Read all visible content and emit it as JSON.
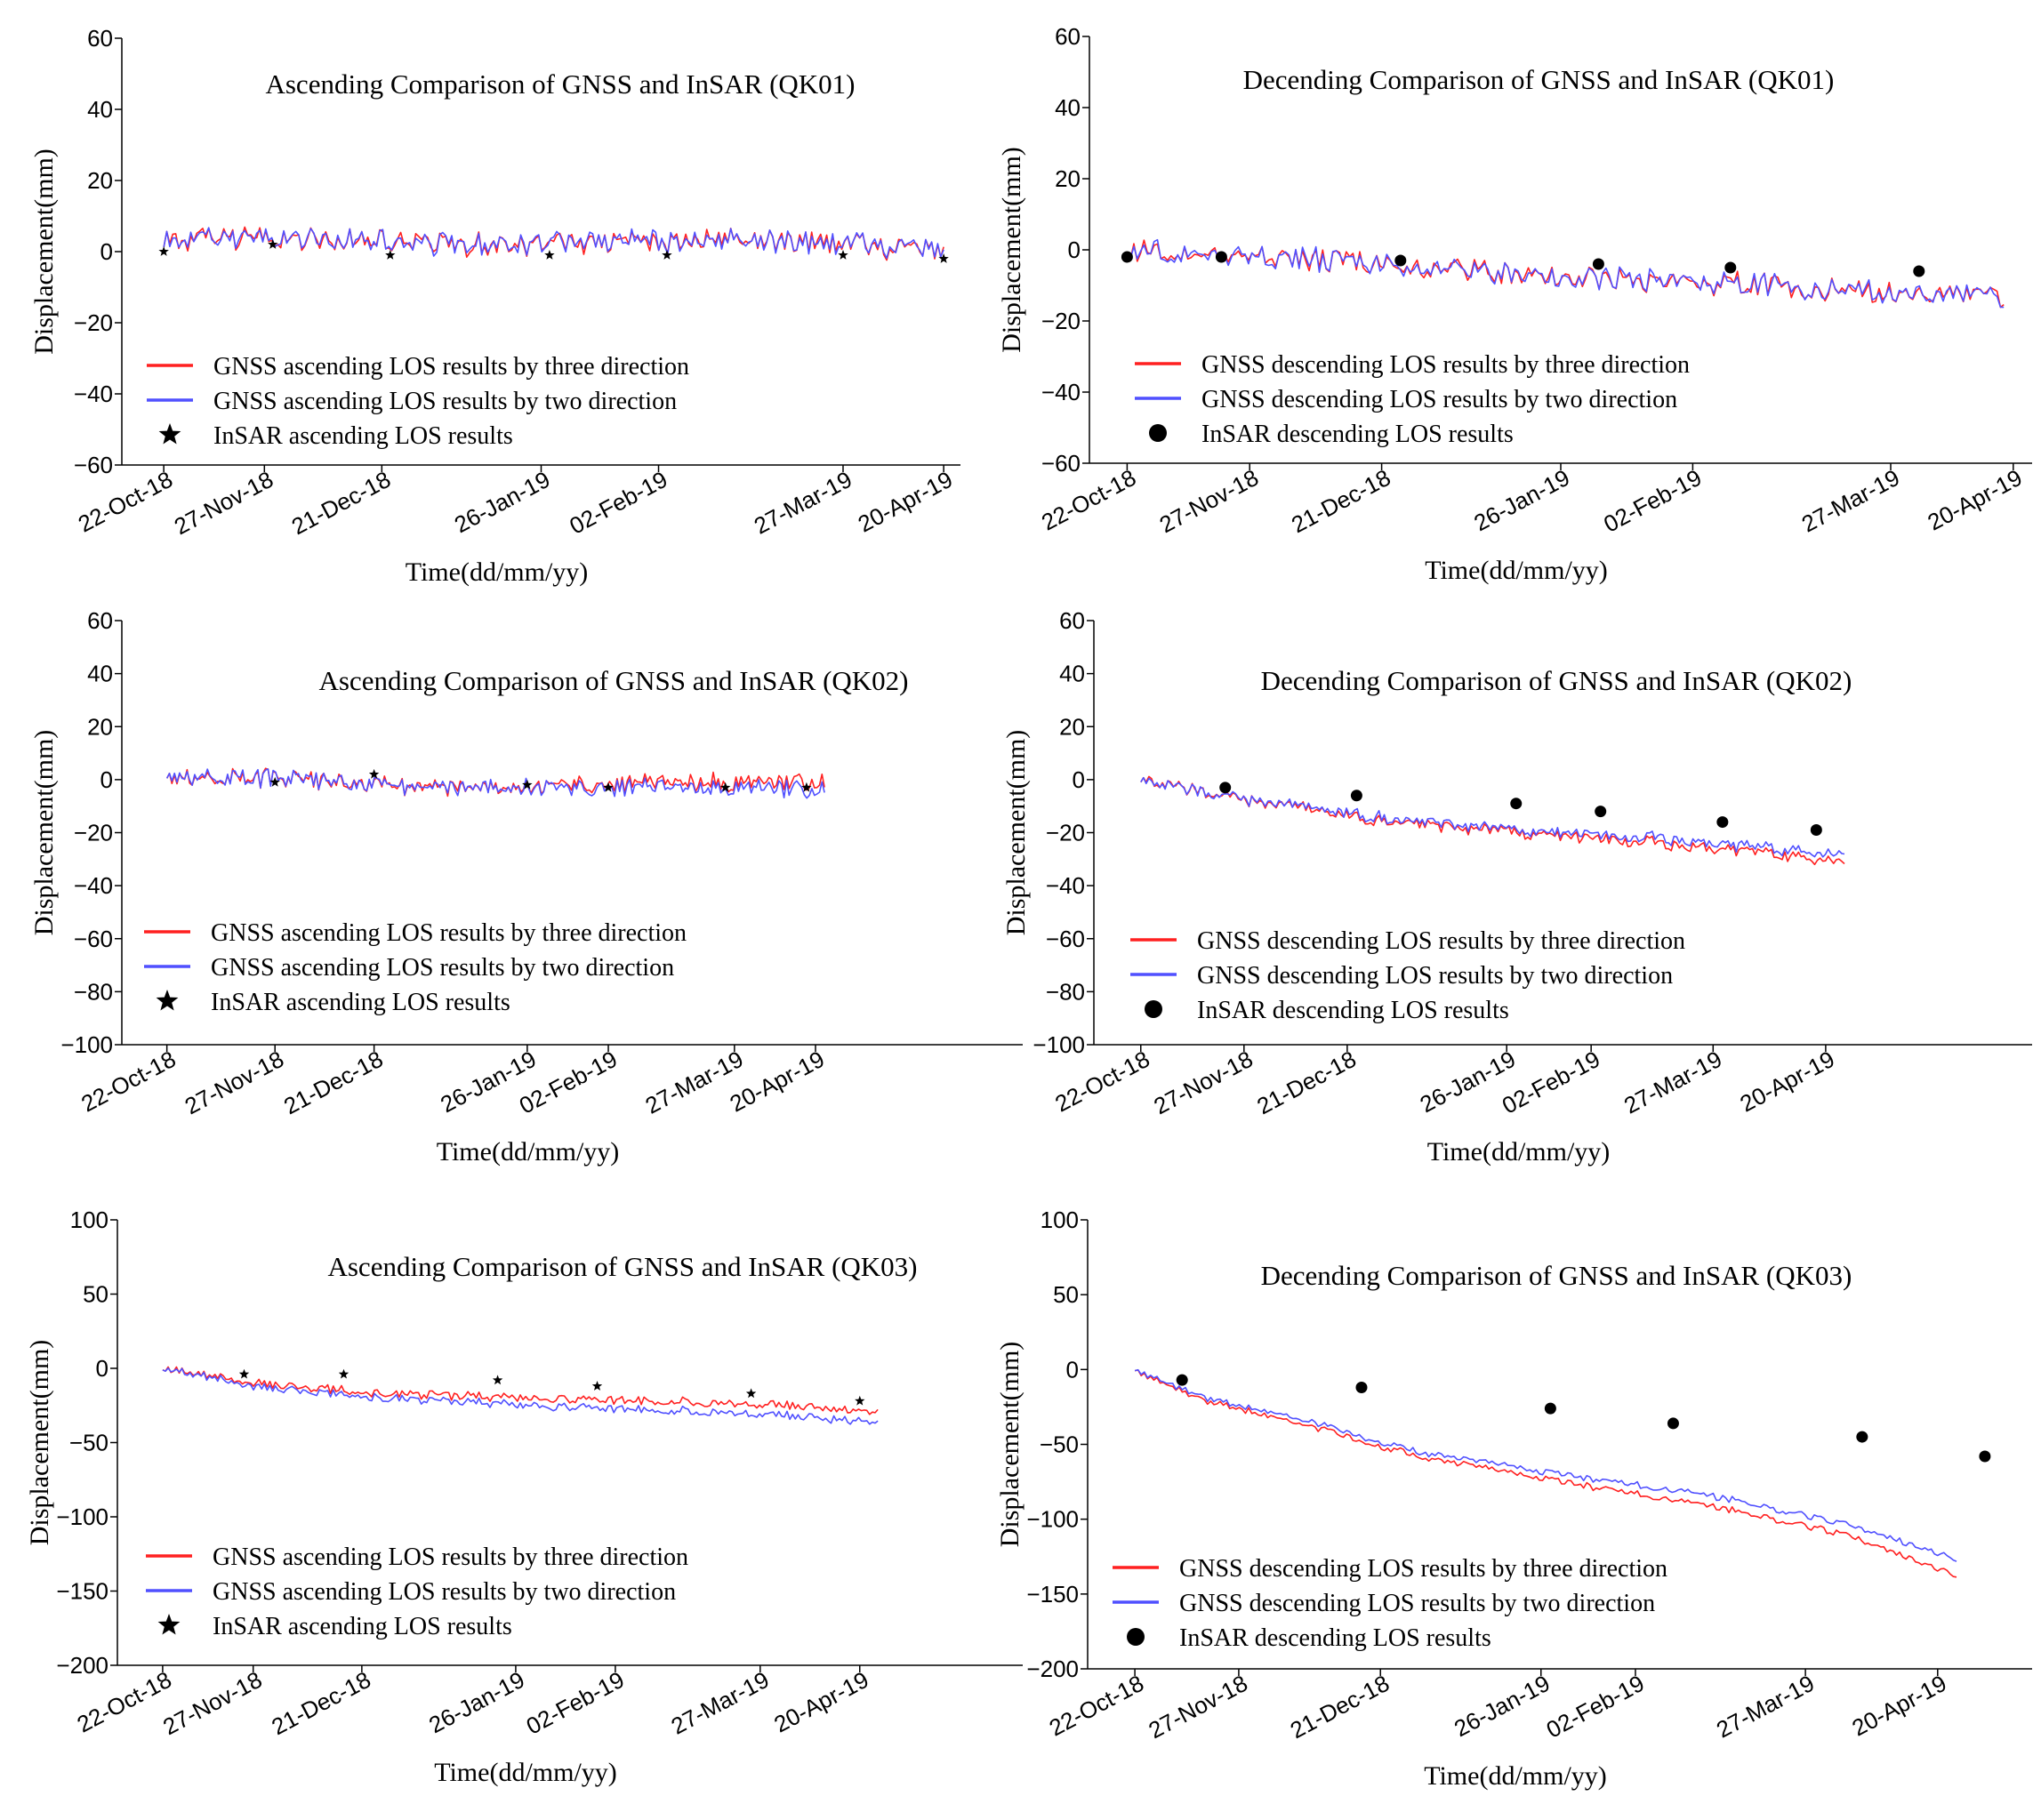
{
  "colors": {
    "three_direction": "#ff2020",
    "two_direction": "#5050ff",
    "insar": "#000000"
  },
  "chart_data": [
    {
      "id": "asc-qk01",
      "type": "line",
      "title": "Ascending Comparison of GNSS and InSAR (QK01)",
      "xlabel": "Time(dd/mm/yy)",
      "ylabel": "Displacement(mm)",
      "ylim": [
        -60,
        60
      ],
      "yticks": [
        -60,
        -40,
        -20,
        0,
        20,
        40,
        60
      ],
      "xtick_labels": [
        "22-Oct-18",
        "27-Nov-18",
        "21-Dec-18",
        "26-Jan-19",
        "02-Feb-19",
        "27-Mar-19",
        "20-Apr-19"
      ],
      "xtick_positions": [
        0.05,
        0.17,
        0.31,
        0.5,
        0.64,
        0.86,
        0.98
      ],
      "legend": [
        "GNSS ascending LOS results by three direction",
        "GNSS ascending LOS results by two direction",
        "InSAR ascending LOS results"
      ],
      "insar_marker": "star",
      "series": [
        {
          "name": "GNSS ascending LOS results by three direction",
          "x": [
            0.05,
            0.2,
            0.4,
            0.6,
            0.8,
            0.98
          ],
          "values": [
            3,
            4,
            2,
            3,
            3,
            0
          ],
          "noise": 3
        },
        {
          "name": "GNSS ascending LOS results by two direction",
          "x": [
            0.05,
            0.2,
            0.4,
            0.6,
            0.8,
            0.98
          ],
          "values": [
            3,
            4,
            2,
            3,
            3,
            0
          ],
          "noise": 3
        }
      ],
      "insar": {
        "x": [
          0.05,
          0.18,
          0.32,
          0.51,
          0.65,
          0.86,
          0.98
        ],
        "values": [
          0,
          2,
          -1,
          -1,
          -1,
          -1,
          -2
        ]
      }
    },
    {
      "id": "des-qk01",
      "type": "line",
      "title": "Decending Comparison of GNSS and InSAR (QK01)",
      "xlabel": "Time(dd/mm/yy)",
      "ylabel": "Displacement(mm)",
      "ylim": [
        -60,
        60
      ],
      "yticks": [
        -60,
        -40,
        -20,
        0,
        20,
        40,
        60
      ],
      "xtick_labels": [
        "22-Oct-18",
        "27-Nov-18",
        "21-Dec-18",
        "26-Jan-19",
        "02-Feb-19",
        "27-Mar-19",
        "20-Apr-19"
      ],
      "xtick_positions": [
        0.04,
        0.17,
        0.31,
        0.5,
        0.64,
        0.85,
        0.98
      ],
      "legend": [
        "GNSS descending LOS results by three direction",
        "GNSS descending LOS results by two direction",
        "InSAR descending LOS results"
      ],
      "insar_marker": "circle",
      "series": [
        {
          "name": "GNSS descending LOS results by three direction",
          "x": [
            0.04,
            0.2,
            0.4,
            0.6,
            0.8,
            0.97
          ],
          "values": [
            0,
            -2,
            -6,
            -9,
            -11,
            -13
          ],
          "noise": 3
        },
        {
          "name": "GNSS descending LOS results by two direction",
          "x": [
            0.04,
            0.2,
            0.4,
            0.6,
            0.8,
            0.97
          ],
          "values": [
            0,
            -2,
            -6,
            -9,
            -11,
            -13
          ],
          "noise": 3
        }
      ],
      "insar": {
        "x": [
          0.04,
          0.14,
          0.33,
          0.54,
          0.68,
          0.88
        ],
        "values": [
          -2,
          -2,
          -3,
          -4,
          -5,
          -6
        ]
      }
    },
    {
      "id": "asc-qk02",
      "type": "line",
      "title": "Ascending Comparison of GNSS and InSAR (QK02)",
      "xlabel": "Time(dd/mm/yy)",
      "ylabel": "Displacement(mm)",
      "ylim": [
        -100,
        60
      ],
      "yticks": [
        -100,
        -80,
        -60,
        -40,
        -20,
        0,
        20,
        40,
        60
      ],
      "xtick_labels": [
        "22-Oct-18",
        "27-Nov-18",
        "21-Dec-18",
        "26-Jan-19",
        "02-Feb-19",
        "27-Mar-19",
        "20-Apr-19"
      ],
      "xtick_positions": [
        0.05,
        0.17,
        0.28,
        0.45,
        0.54,
        0.68,
        0.77
      ],
      "legend": [
        "GNSS ascending LOS results by three direction",
        "GNSS ascending LOS results by two direction",
        "InSAR ascending LOS results"
      ],
      "insar_marker": "star",
      "series": [
        {
          "name": "GNSS ascending LOS results by three direction",
          "x": [
            0.05,
            0.2,
            0.35,
            0.5,
            0.65,
            0.78
          ],
          "values": [
            2,
            0,
            -3,
            -2,
            -1,
            -1
          ],
          "noise": 3
        },
        {
          "name": "GNSS ascending LOS results by two direction",
          "x": [
            0.05,
            0.2,
            0.35,
            0.5,
            0.65,
            0.78
          ],
          "values": [
            2,
            0,
            -3,
            -3,
            -3,
            -4
          ],
          "noise": 3
        }
      ],
      "insar": {
        "x": [
          0.17,
          0.28,
          0.45,
          0.54,
          0.67,
          0.76
        ],
        "values": [
          -1,
          2,
          -2,
          -3,
          -3,
          -3
        ]
      }
    },
    {
      "id": "des-qk02",
      "type": "line",
      "title": "Decending Comparison of GNSS and InSAR (QK02)",
      "xlabel": "Time(dd/mm/yy)",
      "ylabel": "Displacement(mm)",
      "ylim": [
        -100,
        60
      ],
      "yticks": [
        -100,
        -80,
        -60,
        -40,
        -20,
        0,
        20,
        40,
        60
      ],
      "xtick_labels": [
        "22-Oct-18",
        "27-Nov-18",
        "21-Dec-18",
        "26-Jan-19",
        "02-Feb-19",
        "27-Mar-19",
        "20-Apr-19"
      ],
      "xtick_positions": [
        0.05,
        0.16,
        0.27,
        0.44,
        0.53,
        0.66,
        0.78
      ],
      "legend": [
        "GNSS descending LOS results by three direction",
        "GNSS descending LOS results by two direction",
        "InSAR descending LOS results"
      ],
      "insar_marker": "circle",
      "series": [
        {
          "name": "GNSS descending LOS results by three direction",
          "x": [
            0.05,
            0.15,
            0.3,
            0.45,
            0.6,
            0.75,
            0.8
          ],
          "values": [
            0,
            -7,
            -15,
            -20,
            -24,
            -29,
            -32
          ],
          "noise": 2
        },
        {
          "name": "GNSS descending LOS results by two direction",
          "x": [
            0.05,
            0.15,
            0.3,
            0.45,
            0.6,
            0.75,
            0.8
          ],
          "values": [
            0,
            -7,
            -14,
            -19,
            -22,
            -27,
            -29
          ],
          "noise": 2
        }
      ],
      "insar": {
        "x": [
          0.14,
          0.28,
          0.45,
          0.54,
          0.67,
          0.77
        ],
        "values": [
          -3,
          -6,
          -9,
          -12,
          -16,
          -19
        ]
      }
    },
    {
      "id": "asc-qk03",
      "type": "line",
      "title": "Ascending Comparison of GNSS and InSAR (QK03)",
      "xlabel": "Time(dd/mm/yy)",
      "ylabel": "Displacement(mm)",
      "ylim": [
        -200,
        100
      ],
      "yticks": [
        -200,
        -150,
        -100,
        -50,
        0,
        50,
        100
      ],
      "xtick_labels": [
        "22-Oct-18",
        "27-Nov-18",
        "21-Dec-18",
        "26-Jan-19",
        "02-Feb-19",
        "27-Mar-19",
        "20-Apr-19"
      ],
      "xtick_positions": [
        0.05,
        0.15,
        0.27,
        0.44,
        0.55,
        0.71,
        0.82
      ],
      "legend": [
        "GNSS ascending LOS results by three direction",
        "GNSS ascending LOS results by two direction",
        "InSAR ascending LOS results"
      ],
      "insar_marker": "star",
      "series": [
        {
          "name": "GNSS ascending LOS results by three direction",
          "x": [
            0.05,
            0.15,
            0.3,
            0.45,
            0.6,
            0.75,
            0.84
          ],
          "values": [
            0,
            -10,
            -17,
            -20,
            -22,
            -25,
            -30
          ],
          "noise": 2.5
        },
        {
          "name": "GNSS ascending LOS results by two direction",
          "x": [
            0.05,
            0.15,
            0.3,
            0.45,
            0.6,
            0.75,
            0.84
          ],
          "values": [
            0,
            -12,
            -20,
            -25,
            -28,
            -32,
            -37
          ],
          "noise": 2.5
        }
      ],
      "insar": {
        "x": [
          0.14,
          0.25,
          0.42,
          0.53,
          0.7,
          0.82
        ],
        "values": [
          -4,
          -4,
          -8,
          -12,
          -17,
          -22
        ]
      }
    },
    {
      "id": "des-qk03",
      "type": "line",
      "title": "Decending Comparison of GNSS and InSAR (QK03)",
      "xlabel": "Time(dd/mm/yy)",
      "ylabel": "Displacement(mm)",
      "ylim": [
        -200,
        100
      ],
      "yticks": [
        -200,
        -150,
        -100,
        -50,
        0,
        50,
        100
      ],
      "xtick_labels": [
        "22-Oct-18",
        "27-Nov-18",
        "21-Dec-18",
        "26-Jan-19",
        "02-Feb-19",
        "27-Mar-19",
        "20-Apr-19"
      ],
      "xtick_positions": [
        0.05,
        0.16,
        0.31,
        0.48,
        0.58,
        0.76,
        0.9
      ],
      "legend": [
        "GNSS descending LOS results by three direction",
        "GNSS descending LOS results by two direction",
        "InSAR descending LOS results"
      ],
      "insar_marker": "circle",
      "series": [
        {
          "name": "GNSS descending LOS results by three direction",
          "x": [
            0.05,
            0.12,
            0.22,
            0.35,
            0.5,
            0.65,
            0.8,
            0.92
          ],
          "values": [
            0,
            -20,
            -35,
            -58,
            -75,
            -90,
            -110,
            -138
          ],
          "noise": 2
        },
        {
          "name": "GNSS descending LOS results by two direction",
          "x": [
            0.05,
            0.12,
            0.22,
            0.35,
            0.5,
            0.65,
            0.8,
            0.92
          ],
          "values": [
            0,
            -18,
            -32,
            -55,
            -70,
            -83,
            -103,
            -127
          ],
          "noise": 2
        }
      ],
      "insar": {
        "x": [
          0.1,
          0.29,
          0.49,
          0.62,
          0.82,
          0.95
        ],
        "values": [
          -7,
          -12,
          -26,
          -36,
          -45,
          -58
        ]
      }
    }
  ]
}
